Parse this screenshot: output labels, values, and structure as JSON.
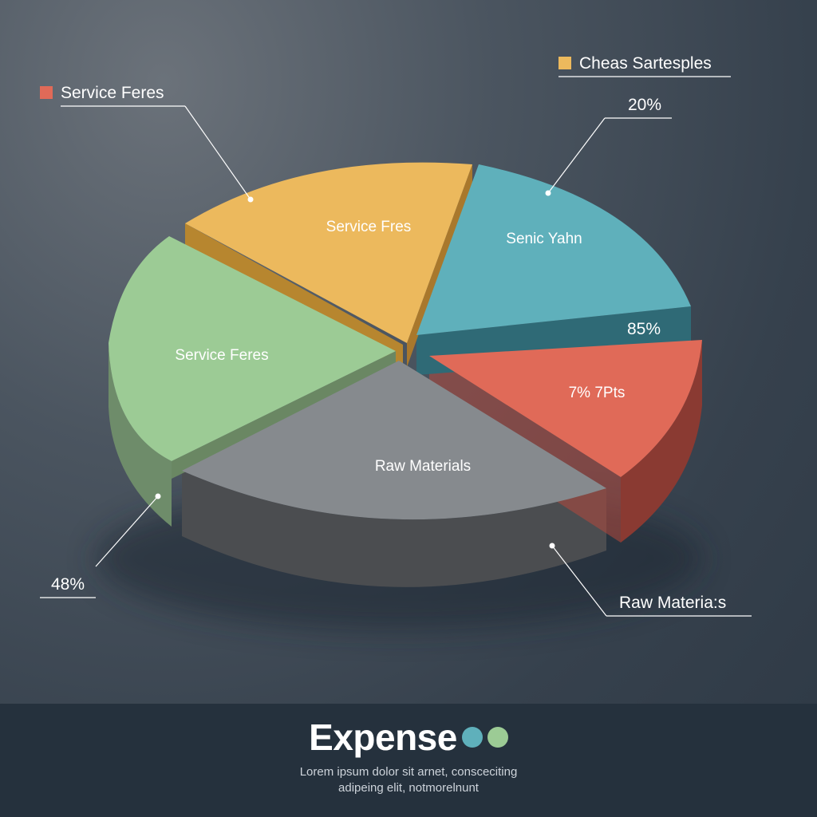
{
  "chart_data": {
    "type": "pie",
    "slices": [
      {
        "label": "Service Fres",
        "color": "#ecb95d"
      },
      {
        "label": "Senic Yahn",
        "color": "#5fb0bb"
      },
      {
        "label": "7% 7Pts",
        "color": "#e06a58"
      },
      {
        "label": "Raw Materials",
        "color": "#868a8e"
      },
      {
        "label": "Service Feres",
        "color": "#9ccb95"
      }
    ],
    "callouts": [
      {
        "text": "Service Feres",
        "marker_color": "#e06a58"
      },
      {
        "text": "Cheas Sartesples",
        "marker_color": "#ecb95d"
      },
      {
        "text": "20%"
      },
      {
        "text": "85%"
      },
      {
        "text": "48%"
      },
      {
        "text": "Raw Materia:s"
      }
    ]
  },
  "footer": {
    "title": "Expense",
    "dot_colors": [
      "#5fb0bb",
      "#9ccb95"
    ],
    "subtitle_line1": "Lorem ipsum dolor sit arnet, consceciting",
    "subtitle_line2": "adipeing elit, notmorelnunt"
  }
}
